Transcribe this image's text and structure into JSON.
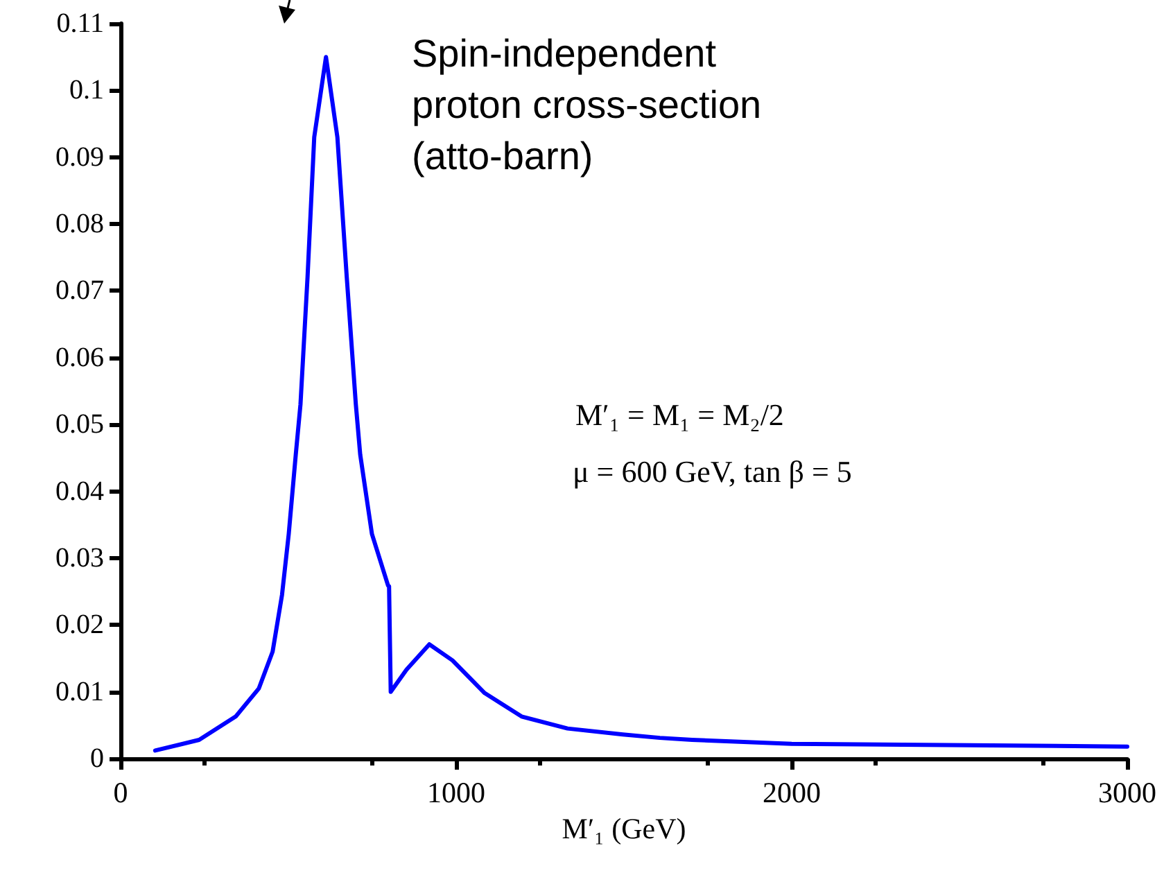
{
  "chart_data": {
    "type": "line",
    "xlabel": "M′₁ (GeV)",
    "annotations": [
      "Spin-independent\nproton cross-section\n(atto-barn)",
      "M′₁ = M₁ = M₂/2",
      "μ = 600 GeV, tan β = 5"
    ],
    "series": [
      {
        "color": "#0000ff",
        "x": [
          103,
          234,
          343,
          412,
          453,
          481,
          501,
          522,
          536,
          557,
          577,
          612,
          646,
          674,
          701,
          714,
          749,
          797,
          800,
          805,
          852,
          920,
          989,
          1085,
          1195,
          1332,
          1497,
          1607,
          1703,
          2000,
          2531,
          3000
        ],
        "values": [
          0.0012,
          0.0028,
          0.0063,
          0.0105,
          0.016,
          0.0245,
          0.0336,
          0.0455,
          0.053,
          0.072,
          0.093,
          0.105,
          0.093,
          0.072,
          0.053,
          0.0455,
          0.0336,
          0.0259,
          0.0258,
          0.01,
          0.0133,
          0.0171,
          0.0147,
          0.0098,
          0.0063,
          0.0045,
          0.0036,
          0.0031,
          0.0028,
          0.0022,
          0.002,
          0.0018
        ]
      }
    ],
    "xlim": [
      0,
      3000
    ],
    "xticks": [
      0,
      1000,
      2000,
      3000
    ],
    "ylim": [
      0,
      0.11
    ],
    "yticks": [
      0,
      0.01,
      0.02,
      0.03,
      0.04,
      0.05,
      0.06,
      0.07,
      0.08,
      0.09,
      0.1,
      0.11
    ],
    "grid": false,
    "marker": "none",
    "line_style": "solid"
  }
}
